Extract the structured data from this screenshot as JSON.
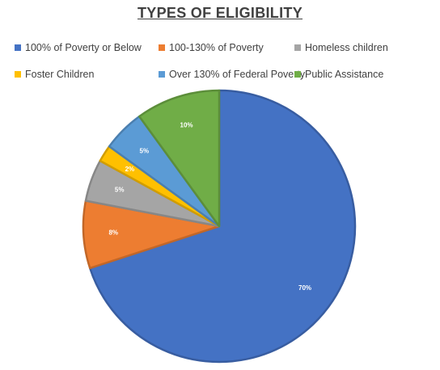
{
  "chart_data": {
    "type": "pie",
    "title": "TYPES OF ELIGIBILITY",
    "legend_position": "top",
    "slices": [
      {
        "name": "100% of Poverty or Below",
        "value": 70,
        "label": "70%",
        "color": "#4472C4"
      },
      {
        "name": "100-130% of Poverty",
        "value": 8,
        "label": "8%",
        "color": "#ED7D31"
      },
      {
        "name": "Homeless children",
        "value": 5,
        "label": "5%",
        "color": "#A5A5A5"
      },
      {
        "name": "Foster Children",
        "value": 2,
        "label": "2%",
        "color": "#FFC000"
      },
      {
        "name": "Over 130% of Federal Poverty",
        "value": 5,
        "label": "5%",
        "color": "#5B9BD5"
      },
      {
        "name": "Public Assistance",
        "value": 10,
        "label": "10%",
        "color": "#70AD47"
      }
    ]
  }
}
